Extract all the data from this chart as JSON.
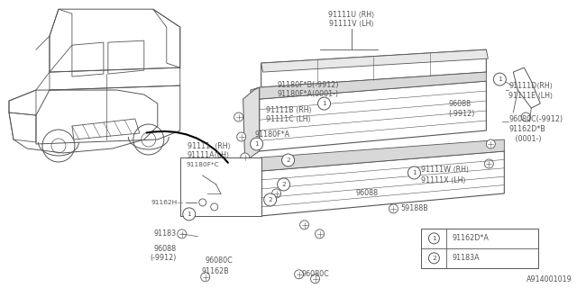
{
  "bg_color": "#ffffff",
  "line_color": "#555555",
  "diagram_id": "A914001019",
  "legend": [
    {
      "num": "1",
      "code": "91162D*A"
    },
    {
      "num": "2",
      "code": "91183A"
    }
  ]
}
